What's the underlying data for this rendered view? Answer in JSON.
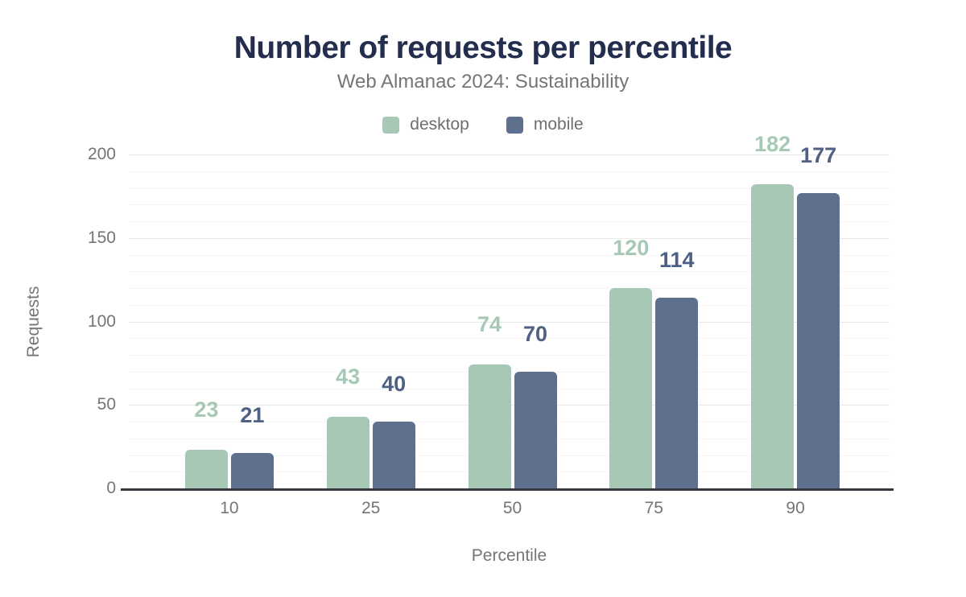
{
  "page": {
    "background": "#ffffff"
  },
  "chart_data": {
    "type": "bar",
    "title": "Number of requests per percentile",
    "subtitle": "Web Almanac 2024: Sustainability",
    "xlabel": "Percentile",
    "ylabel": "Requests",
    "categories": [
      "10",
      "25",
      "50",
      "75",
      "90"
    ],
    "series": [
      {
        "name": "desktop",
        "color": "#a6c8b5",
        "label_color": "#a6c8b5",
        "values": [
          23,
          43,
          74,
          120,
          182
        ]
      },
      {
        "name": "mobile",
        "color": "#5e708d",
        "label_color": "#4e6184",
        "values": [
          21,
          40,
          70,
          114,
          177
        ]
      }
    ],
    "ylim": [
      0,
      200
    ],
    "yticks": [
      0,
      50,
      100,
      150,
      200
    ],
    "minor_grid_step": 10,
    "grid": true,
    "legend_position": "top",
    "colors": {
      "title_text": "#232e4f",
      "subtitle_text": "#757575",
      "axis_text": "#757575",
      "legend_text": "#6e6e6e",
      "axis_line": "#35383e",
      "major_gridline": "#e9e9e9",
      "minor_gridline": "#f5f5f5"
    }
  }
}
